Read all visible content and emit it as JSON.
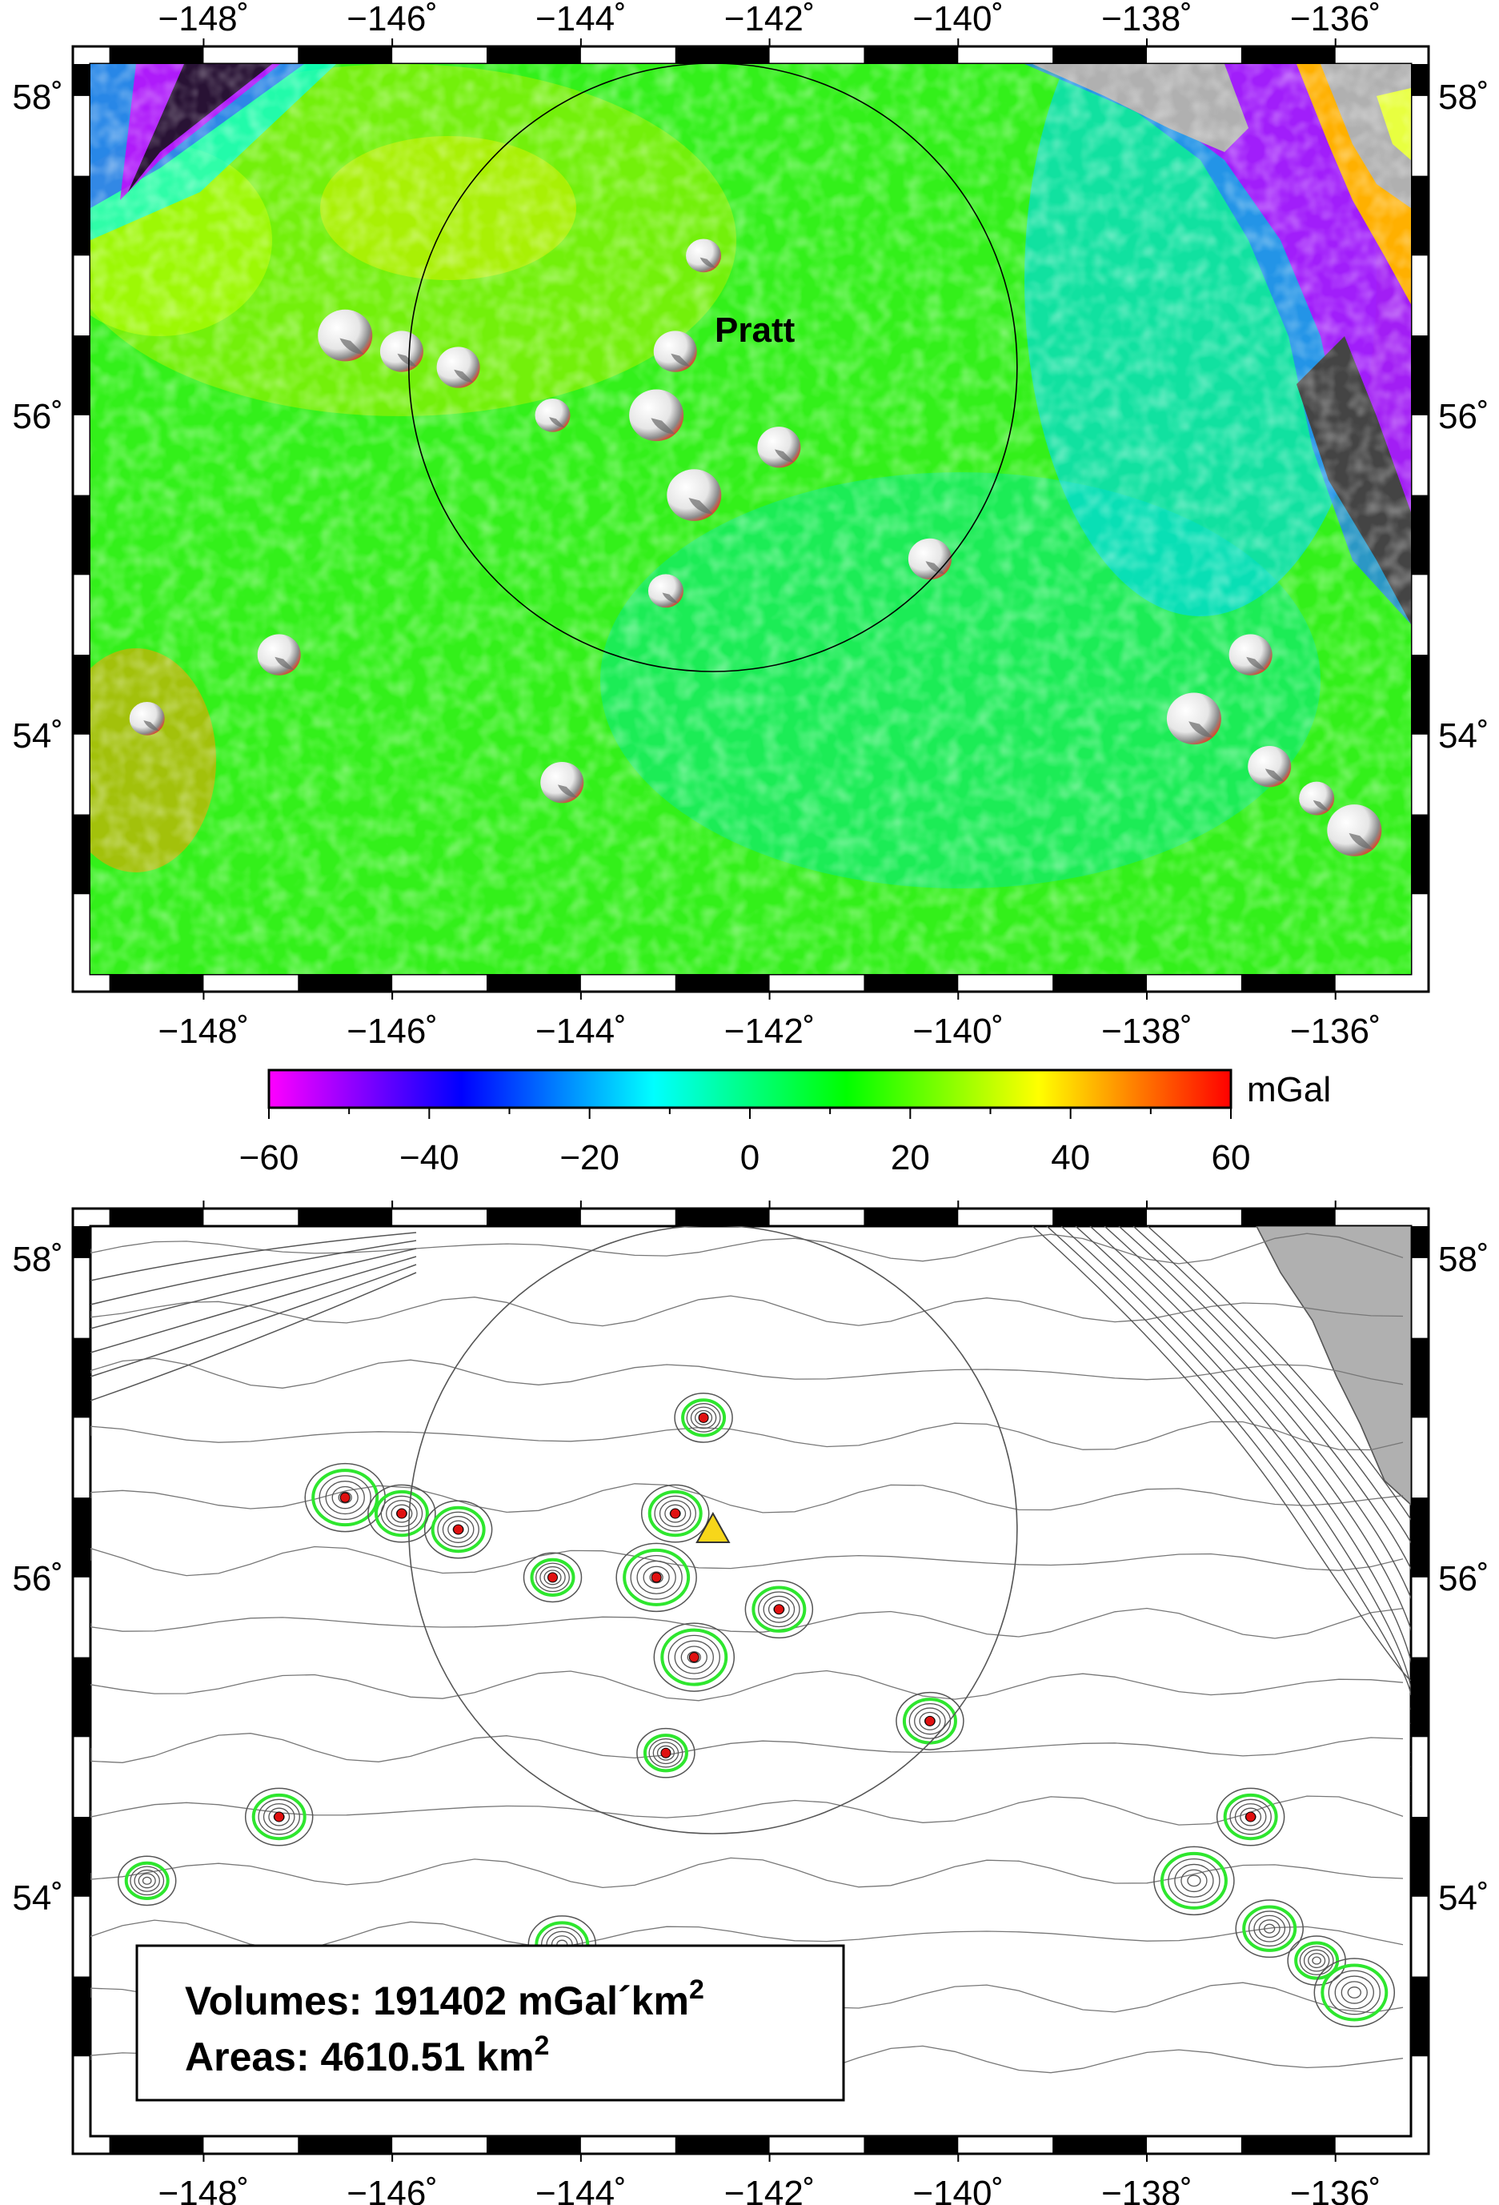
{
  "map_top": {
    "label": "Pratt",
    "x_ticks": [
      "−148˚",
      "−146˚",
      "−144˚",
      "−142˚",
      "−140˚",
      "−138˚",
      "−136˚"
    ],
    "y_ticks": [
      "58˚",
      "56˚",
      "54˚"
    ]
  },
  "colorbar": {
    "unit": "mGal",
    "ticks": [
      "−60",
      "−40",
      "−20",
      "0",
      "20",
      "40",
      "60"
    ],
    "range": [
      -60,
      60
    ],
    "palette": [
      "#ff00ff",
      "#0000ff",
      "#00ffff",
      "#00ff00",
      "#ffff00",
      "#ff0000"
    ]
  },
  "map_bottom": {
    "x_ticks": [
      "−148˚",
      "−146˚",
      "−144˚",
      "−142˚",
      "−140˚",
      "−138˚",
      "−136˚"
    ],
    "y_ticks": [
      "58˚",
      "56˚",
      "54˚"
    ],
    "volumes_prefix": "Volumes: 191402 mGal´km",
    "areas_prefix": "Areas: 4610.51 km",
    "exponent": "2"
  },
  "chart_data": {
    "type": "heatmap",
    "xlim": [
      -149.2,
      -135.2
    ],
    "ylim": [
      52.5,
      58.2
    ],
    "x_tick_values": [
      -148,
      -146,
      -144,
      -142,
      -140,
      -138,
      -136
    ],
    "y_tick_values": [
      58,
      56,
      54
    ],
    "search_circle_center": [
      -142.6,
      56.3
    ],
    "selected_seamount": [
      -142.6,
      56.3
    ],
    "seamounts": [
      [
        -146.5,
        56.5
      ],
      [
        -145.9,
        56.4
      ],
      [
        -145.3,
        56.3
      ],
      [
        -144.3,
        56.0
      ],
      [
        -143.2,
        56.0
      ],
      [
        -143.0,
        56.4
      ],
      [
        -142.7,
        57.0
      ],
      [
        -141.9,
        55.8
      ],
      [
        -142.8,
        55.5
      ],
      [
        -143.1,
        54.9
      ],
      [
        -140.3,
        55.1
      ],
      [
        -147.2,
        54.5
      ],
      [
        -137.5,
        54.1
      ],
      [
        -136.9,
        54.5
      ],
      [
        -136.7,
        53.8
      ],
      [
        -136.2,
        53.6
      ],
      [
        -135.8,
        53.4
      ],
      [
        -144.2,
        53.7
      ],
      [
        -148.6,
        54.1
      ]
    ],
    "volume": 191402,
    "volume_unit": "mGal´km2",
    "area": 4610.51,
    "area_unit": "km2"
  }
}
